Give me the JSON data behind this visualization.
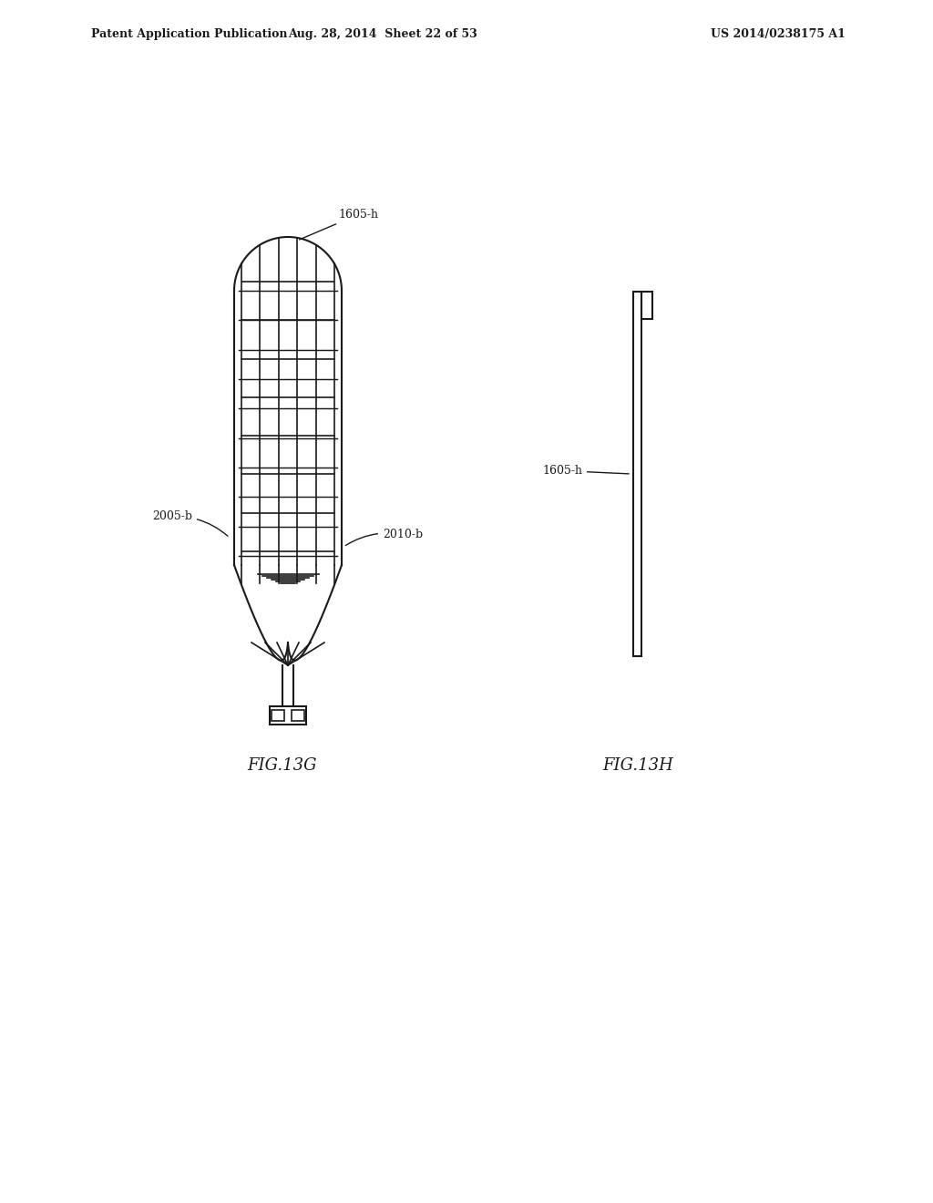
{
  "bg_color": "#ffffff",
  "line_color": "#1a1a1a",
  "header_left": "Patent Application Publication",
  "header_mid": "Aug. 28, 2014  Sheet 22 of 53",
  "header_right": "US 2014/0238175 A1",
  "fig_label_left": "FIG.13G",
  "fig_label_right": "FIG.13H",
  "label_1605h_top": "1605-h",
  "label_2005b": "2005-b",
  "label_2010b": "2010-b",
  "label_1605h_side": "1605-h",
  "lw": 1.5
}
